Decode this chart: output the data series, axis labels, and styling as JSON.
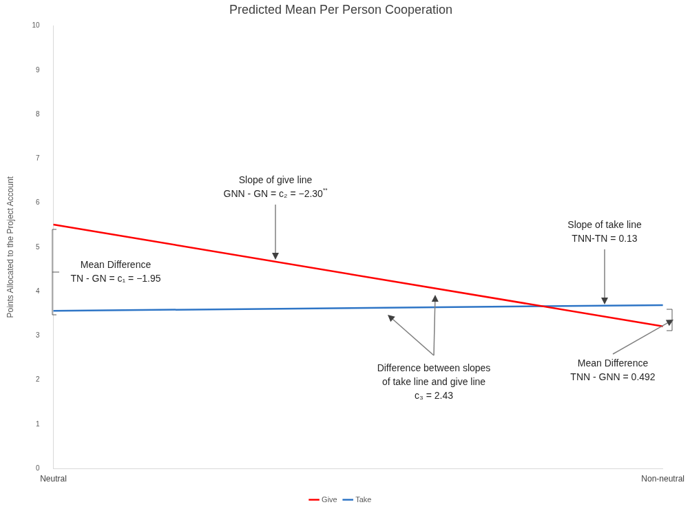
{
  "chart_data": {
    "type": "line",
    "title": "Predicted Mean Per Person Cooperation",
    "ylabel": "Points Allocated to the Project Account",
    "categories": [
      "Neutral",
      "Non-neutral"
    ],
    "series": [
      {
        "name": "Give",
        "color": "#ff0000",
        "values": [
          5.51,
          3.21
        ]
      },
      {
        "name": "Take",
        "color": "#2e75c6",
        "values": [
          3.56,
          3.69
        ]
      }
    ],
    "ylim": [
      0,
      10
    ],
    "yticks": [
      0,
      1,
      2,
      3,
      4,
      5,
      6,
      7,
      8,
      9,
      10
    ],
    "grid": false,
    "legend": "bottom",
    "marker": "none",
    "line_style": "solid",
    "annotations": [
      "Slope of give line\nGNN - GN = c₂ = −2.30$^{**}$",
      "Slope of take line\nTNN-TN = 0.13",
      "Mean Difference\nTN - GN = c₁ = −1.95",
      "Difference between slopes\nof take line and give line\nc₃ = 2.43",
      "Mean Difference\nTNN - GNN = 0.492"
    ]
  }
}
